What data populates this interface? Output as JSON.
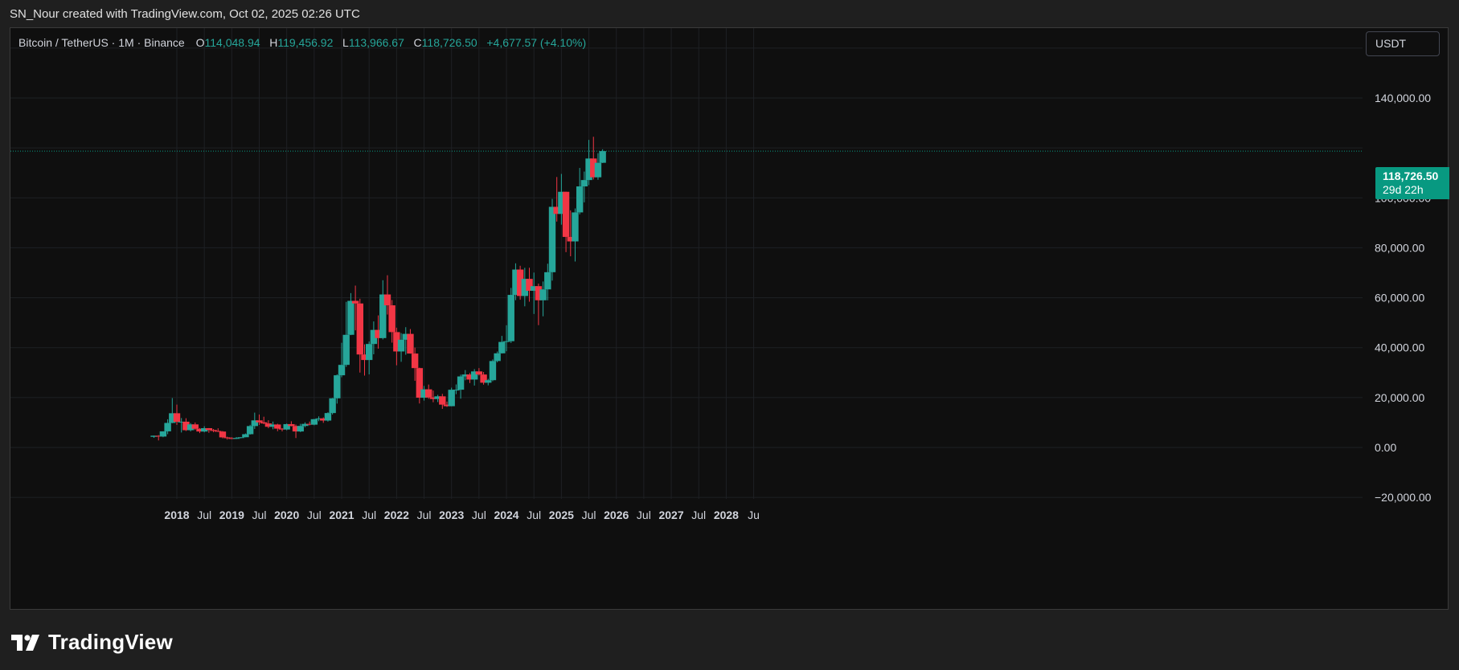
{
  "header": {
    "attribution": "SN_Nour created with TradingView.com, Oct 02, 2025 02:26 UTC"
  },
  "legend": {
    "symbol": "Bitcoin / TetherUS · 1M · Binance",
    "open_label": "O",
    "open": "114,048.94",
    "high_label": "H",
    "high": "119,456.92",
    "low_label": "L",
    "low": "113,966.67",
    "close_label": "C",
    "close": "118,726.50",
    "change": "+4,677.57 (+4.10%)"
  },
  "currency_button": "USDT",
  "price_tag": {
    "price": "118,726.50",
    "countdown": "29d 22h"
  },
  "footer": {
    "brand": "TradingView"
  },
  "colors": {
    "up": "#26a69a",
    "down": "#f23645",
    "background": "#0f0f0f",
    "grid": "#1e2024",
    "last_price": "#089981"
  },
  "chart_data": {
    "type": "candlestick",
    "title": "Bitcoin / TetherUS · 1M · Binance",
    "ylim": [
      -20000,
      150000
    ],
    "y_ticks": [
      140000,
      100000,
      80000,
      60000,
      40000,
      20000,
      0,
      -20000
    ],
    "y_tick_labels": [
      "140,000.00",
      "100,000.00",
      "80,000.00",
      "60,000.00",
      "40,000.00",
      "20,000.00",
      "0.00",
      "−20,000.00"
    ],
    "x_ticks": [
      "2018",
      "Jul",
      "2019",
      "Jul",
      "2020",
      "Jul",
      "2021",
      "Jul",
      "2022",
      "Jul",
      "2023",
      "Jul",
      "2024",
      "Jul",
      "2025",
      "Jul",
      "2026",
      "Jul",
      "2027",
      "Jul",
      "2028",
      "Ju"
    ],
    "bold_x_ticks": [
      "2018",
      "2019",
      "2020",
      "2021",
      "2022",
      "2023",
      "2024",
      "2025",
      "2026",
      "2027",
      "2028"
    ],
    "last_price": 118726.5,
    "candles": [
      {
        "t": "2017-08",
        "o": 4261,
        "h": 4746,
        "l": 3850,
        "c": 4724
      },
      {
        "t": "2017-09",
        "o": 4690,
        "h": 4939,
        "l": 2817,
        "c": 4379
      },
      {
        "t": "2017-10",
        "o": 4379,
        "h": 6470,
        "l": 4110,
        "c": 6463
      },
      {
        "t": "2017-11",
        "o": 6463,
        "h": 11300,
        "l": 5325,
        "c": 9838
      },
      {
        "t": "2017-12",
        "o": 9837,
        "h": 19798,
        "l": 9722,
        "c": 13716
      },
      {
        "t": "2018-01",
        "o": 13716,
        "h": 17176,
        "l": 9035,
        "c": 10285
      },
      {
        "t": "2018-02",
        "o": 10285,
        "h": 11786,
        "l": 6000,
        "c": 10326
      },
      {
        "t": "2018-03",
        "o": 10326,
        "h": 11710,
        "l": 6600,
        "c": 6923
      },
      {
        "t": "2018-04",
        "o": 6923,
        "h": 9765,
        "l": 6430,
        "c": 9246
      },
      {
        "t": "2018-05",
        "o": 9246,
        "h": 10020,
        "l": 7034,
        "c": 7494
      },
      {
        "t": "2018-06",
        "o": 7494,
        "h": 7786,
        "l": 5755,
        "c": 6391
      },
      {
        "t": "2018-07",
        "o": 6391,
        "h": 8506,
        "l": 6070,
        "c": 7730
      },
      {
        "t": "2018-08",
        "o": 7730,
        "h": 7760,
        "l": 5880,
        "c": 7011
      },
      {
        "t": "2018-09",
        "o": 7011,
        "h": 7410,
        "l": 6100,
        "c": 6626
      },
      {
        "t": "2018-10",
        "o": 6626,
        "h": 7680,
        "l": 6200,
        "c": 6371
      },
      {
        "t": "2018-11",
        "o": 6371,
        "h": 6600,
        "l": 3652,
        "c": 4041
      },
      {
        "t": "2018-12",
        "o": 4041,
        "h": 4312,
        "l": 3156,
        "c": 3742
      },
      {
        "t": "2019-01",
        "o": 3742,
        "h": 4140,
        "l": 3349,
        "c": 3458
      },
      {
        "t": "2019-02",
        "o": 3458,
        "h": 4198,
        "l": 3373,
        "c": 3814
      },
      {
        "t": "2019-03",
        "o": 3814,
        "h": 4140,
        "l": 3670,
        "c": 4103
      },
      {
        "t": "2019-04",
        "o": 4103,
        "h": 5600,
        "l": 4068,
        "c": 5320
      },
      {
        "t": "2019-05",
        "o": 5320,
        "h": 9074,
        "l": 5155,
        "c": 8574
      },
      {
        "t": "2019-06",
        "o": 8574,
        "h": 13970,
        "l": 7440,
        "c": 10855
      },
      {
        "t": "2019-07",
        "o": 10855,
        "h": 13202,
        "l": 9055,
        "c": 10085
      },
      {
        "t": "2019-08",
        "o": 10085,
        "h": 12325,
        "l": 9320,
        "c": 9630
      },
      {
        "t": "2019-09",
        "o": 9630,
        "h": 10905,
        "l": 7710,
        "c": 8293
      },
      {
        "t": "2019-10",
        "o": 8293,
        "h": 10370,
        "l": 7300,
        "c": 9199
      },
      {
        "t": "2019-11",
        "o": 9199,
        "h": 9505,
        "l": 6515,
        "c": 7546
      },
      {
        "t": "2019-12",
        "o": 7546,
        "h": 7750,
        "l": 6435,
        "c": 7195
      },
      {
        "t": "2020-01",
        "o": 7195,
        "h": 9578,
        "l": 6871,
        "c": 9352
      },
      {
        "t": "2020-02",
        "o": 9352,
        "h": 10500,
        "l": 8445,
        "c": 8600
      },
      {
        "t": "2020-03",
        "o": 8600,
        "h": 9188,
        "l": 3782,
        "c": 6410
      },
      {
        "t": "2020-04",
        "o": 6410,
        "h": 9468,
        "l": 6150,
        "c": 8620
      },
      {
        "t": "2020-05",
        "o": 8620,
        "h": 10067,
        "l": 8107,
        "c": 9448
      },
      {
        "t": "2020-06",
        "o": 9448,
        "h": 10380,
        "l": 8833,
        "c": 9138
      },
      {
        "t": "2020-07",
        "o": 9138,
        "h": 11444,
        "l": 8893,
        "c": 11335
      },
      {
        "t": "2020-08",
        "o": 11335,
        "h": 12468,
        "l": 10525,
        "c": 11650
      },
      {
        "t": "2020-09",
        "o": 11650,
        "h": 12050,
        "l": 9875,
        "c": 10776
      },
      {
        "t": "2020-10",
        "o": 10776,
        "h": 14100,
        "l": 10374,
        "c": 13791
      },
      {
        "t": "2020-11",
        "o": 13791,
        "h": 19863,
        "l": 13195,
        "c": 19695
      },
      {
        "t": "2020-12",
        "o": 19695,
        "h": 29300,
        "l": 17572,
        "c": 28923
      },
      {
        "t": "2021-01",
        "o": 28923,
        "h": 41950,
        "l": 28130,
        "c": 33092
      },
      {
        "t": "2021-02",
        "o": 33092,
        "h": 58352,
        "l": 32296,
        "c": 45135
      },
      {
        "t": "2021-03",
        "o": 45135,
        "h": 61844,
        "l": 45000,
        "c": 58740
      },
      {
        "t": "2021-04",
        "o": 58740,
        "h": 64854,
        "l": 46930,
        "c": 57694
      },
      {
        "t": "2021-05",
        "o": 57694,
        "h": 59592,
        "l": 30000,
        "c": 37254
      },
      {
        "t": "2021-06",
        "o": 37254,
        "h": 41330,
        "l": 28805,
        "c": 35045
      },
      {
        "t": "2021-07",
        "o": 35045,
        "h": 42448,
        "l": 29278,
        "c": 41461
      },
      {
        "t": "2021-08",
        "o": 41461,
        "h": 50500,
        "l": 37332,
        "c": 47100
      },
      {
        "t": "2021-09",
        "o": 47100,
        "h": 52920,
        "l": 39600,
        "c": 43824
      },
      {
        "t": "2021-10",
        "o": 43824,
        "h": 67000,
        "l": 43283,
        "c": 61299
      },
      {
        "t": "2021-11",
        "o": 61299,
        "h": 69000,
        "l": 53256,
        "c": 56950
      },
      {
        "t": "2021-12",
        "o": 56950,
        "h": 59053,
        "l": 42000,
        "c": 46216
      },
      {
        "t": "2022-01",
        "o": 46216,
        "h": 47990,
        "l": 32917,
        "c": 38466
      },
      {
        "t": "2022-02",
        "o": 38466,
        "h": 45821,
        "l": 34322,
        "c": 43160
      },
      {
        "t": "2022-03",
        "o": 43160,
        "h": 48189,
        "l": 37155,
        "c": 45510
      },
      {
        "t": "2022-04",
        "o": 45510,
        "h": 47444,
        "l": 37578,
        "c": 37630
      },
      {
        "t": "2022-05",
        "o": 37630,
        "h": 40023,
        "l": 26700,
        "c": 31801
      },
      {
        "t": "2022-06",
        "o": 31801,
        "h": 31982,
        "l": 17622,
        "c": 19942
      },
      {
        "t": "2022-07",
        "o": 19942,
        "h": 24668,
        "l": 18781,
        "c": 23293
      },
      {
        "t": "2022-08",
        "o": 23293,
        "h": 25211,
        "l": 19520,
        "c": 20050
      },
      {
        "t": "2022-09",
        "o": 20050,
        "h": 22799,
        "l": 18125,
        "c": 19423
      },
      {
        "t": "2022-10",
        "o": 19423,
        "h": 21085,
        "l": 18190,
        "c": 20491
      },
      {
        "t": "2022-11",
        "o": 20491,
        "h": 21480,
        "l": 15476,
        "c": 17163
      },
      {
        "t": "2022-12",
        "o": 17163,
        "h": 18387,
        "l": 16256,
        "c": 16542
      },
      {
        "t": "2023-01",
        "o": 16542,
        "h": 23960,
        "l": 16499,
        "c": 23125
      },
      {
        "t": "2023-02",
        "o": 23125,
        "h": 25250,
        "l": 21351,
        "c": 23141
      },
      {
        "t": "2023-03",
        "o": 23141,
        "h": 29184,
        "l": 19549,
        "c": 28465
      },
      {
        "t": "2023-04",
        "o": 28465,
        "h": 31000,
        "l": 26942,
        "c": 29233
      },
      {
        "t": "2023-05",
        "o": 29233,
        "h": 29820,
        "l": 25811,
        "c": 27210
      },
      {
        "t": "2023-06",
        "o": 27210,
        "h": 31390,
        "l": 24800,
        "c": 30472
      },
      {
        "t": "2023-07",
        "o": 30472,
        "h": 31804,
        "l": 28861,
        "c": 29232
      },
      {
        "t": "2023-08",
        "o": 29232,
        "h": 30244,
        "l": 25166,
        "c": 25941
      },
      {
        "t": "2023-09",
        "o": 25941,
        "h": 27483,
        "l": 24901,
        "c": 26962
      },
      {
        "t": "2023-10",
        "o": 26962,
        "h": 35280,
        "l": 26538,
        "c": 34639
      },
      {
        "t": "2023-11",
        "o": 34639,
        "h": 38450,
        "l": 34097,
        "c": 37723
      },
      {
        "t": "2023-12",
        "o": 37723,
        "h": 44700,
        "l": 37629,
        "c": 42283
      },
      {
        "t": "2024-01",
        "o": 42283,
        "h": 48969,
        "l": 38555,
        "c": 42580
      },
      {
        "t": "2024-02",
        "o": 42580,
        "h": 63913,
        "l": 41884,
        "c": 61131
      },
      {
        "t": "2024-03",
        "o": 61131,
        "h": 73777,
        "l": 59005,
        "c": 71280
      },
      {
        "t": "2024-04",
        "o": 71280,
        "h": 72797,
        "l": 59191,
        "c": 60672
      },
      {
        "t": "2024-05",
        "o": 60672,
        "h": 71979,
        "l": 56552,
        "c": 67540
      },
      {
        "t": "2024-06",
        "o": 67540,
        "h": 71997,
        "l": 58402,
        "c": 62772
      },
      {
        "t": "2024-07",
        "o": 62772,
        "h": 70079,
        "l": 53485,
        "c": 64628
      },
      {
        "t": "2024-08",
        "o": 64628,
        "h": 65659,
        "l": 49000,
        "c": 58974
      },
      {
        "t": "2024-09",
        "o": 58974,
        "h": 66498,
        "l": 52550,
        "c": 63328
      },
      {
        "t": "2024-10",
        "o": 63328,
        "h": 73620,
        "l": 58946,
        "c": 70215
      },
      {
        "t": "2024-11",
        "o": 70215,
        "h": 99588,
        "l": 66835,
        "c": 96408
      },
      {
        "t": "2024-12",
        "o": 96408,
        "h": 108353,
        "l": 90500,
        "c": 93576
      },
      {
        "t": "2025-01",
        "o": 93576,
        "h": 109588,
        "l": 89256,
        "c": 102429
      },
      {
        "t": "2025-02",
        "o": 102429,
        "h": 102500,
        "l": 78258,
        "c": 84350
      },
      {
        "t": "2025-03",
        "o": 84350,
        "h": 95000,
        "l": 76606,
        "c": 82550
      },
      {
        "t": "2025-04",
        "o": 82550,
        "h": 95758,
        "l": 74508,
        "c": 94172
      },
      {
        "t": "2025-05",
        "o": 94172,
        "h": 111980,
        "l": 93377,
        "c": 104591
      },
      {
        "t": "2025-06",
        "o": 104591,
        "h": 110530,
        "l": 98200,
        "c": 107135
      },
      {
        "t": "2025-07",
        "o": 107135,
        "h": 123218,
        "l": 105100,
        "c": 115764
      },
      {
        "t": "2025-08",
        "o": 115764,
        "h": 124474,
        "l": 107350,
        "c": 108246
      },
      {
        "t": "2025-09",
        "o": 108246,
        "h": 117900,
        "l": 107255,
        "c": 114048
      },
      {
        "t": "2025-10",
        "o": 114048.94,
        "h": 119456.92,
        "l": 113966.67,
        "c": 118726.5
      }
    ]
  }
}
